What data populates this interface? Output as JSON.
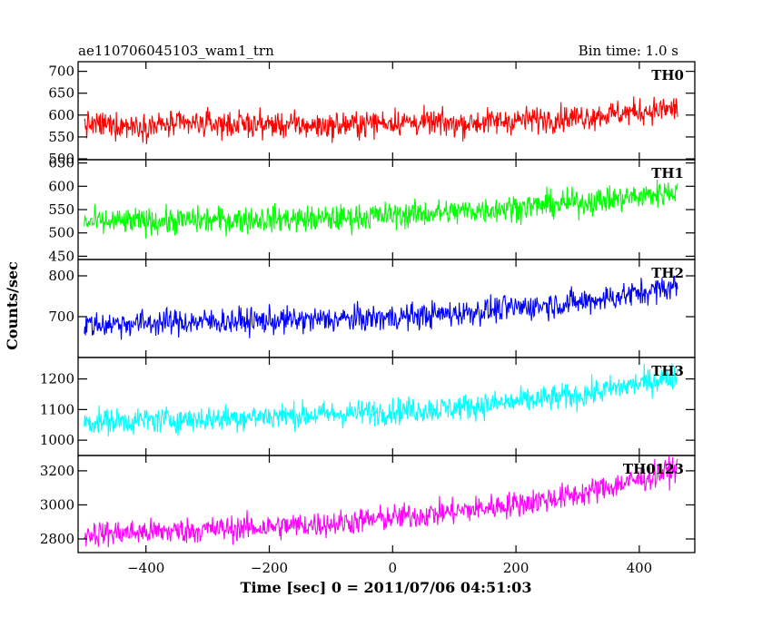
{
  "header": {
    "title": "ae110706045103_wam1_trn",
    "bin_time": "Bin time: 1.0 s"
  },
  "axes": {
    "xlabel": "Time [sec] 0 = 2011/07/06 04:51:03",
    "ylabel": "Counts/sec"
  },
  "chart_data": {
    "type": "line",
    "title": "ae110706045103_wam1_trn",
    "xlabel": "Time [sec] 0 = 2011/07/06 04:51:03",
    "ylabel": "Counts/sec",
    "xlim": [
      -510,
      490
    ],
    "x_ticks": [
      -400,
      -200,
      0,
      200,
      400
    ],
    "x_tick_labels": [
      "−400",
      "−200",
      "0",
      "200",
      "400"
    ],
    "x": [
      -500,
      -400,
      -300,
      -200,
      -100,
      0,
      100,
      200,
      300,
      400,
      460
    ],
    "series": [
      {
        "name": "TH0",
        "color": "#ff0000",
        "ylim": [
          498,
          722
        ],
        "yticks": [
          500,
          550,
          600,
          650,
          700
        ],
        "values": [
          578,
          576,
          580,
          578,
          575,
          585,
          580,
          588,
          595,
          608,
          615
        ]
      },
      {
        "name": "TH1",
        "color": "#00ff00",
        "ylim": [
          443,
          657
        ],
        "yticks": [
          450,
          500,
          550,
          600,
          650
        ],
        "values": [
          522,
          525,
          527,
          530,
          530,
          538,
          545,
          555,
          565,
          578,
          590
        ]
      },
      {
        "name": "TH2",
        "color": "#0000ff",
        "ylim": [
          600,
          840
        ],
        "yticks": [
          700,
          800
        ],
        "values": [
          680,
          685,
          688,
          690,
          693,
          698,
          708,
          722,
          735,
          758,
          775
        ]
      },
      {
        "name": "TH3",
        "color": "#00ffff",
        "ylim": [
          950,
          1270
        ],
        "yticks": [
          1000,
          1100,
          1200
        ],
        "values": [
          1060,
          1065,
          1070,
          1078,
          1085,
          1095,
          1105,
          1125,
          1145,
          1185,
          1210
        ]
      },
      {
        "name": "TH0123",
        "color": "#ff00ff",
        "ylim": [
          2720,
          3290
        ],
        "yticks": [
          2800,
          3000,
          3200
        ],
        "values": [
          2830,
          2840,
          2855,
          2870,
          2890,
          2925,
          2960,
          3005,
          3060,
          3150,
          3210
        ]
      }
    ]
  }
}
